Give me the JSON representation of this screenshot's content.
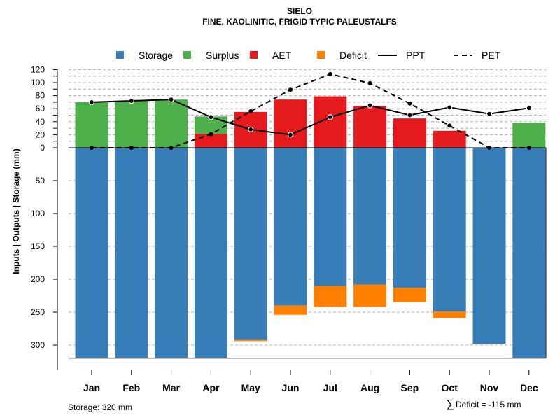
{
  "chart_data": {
    "type": "bar",
    "title": "SIELO",
    "subtitle": "FINE, KAOLINITIC, FRIGID TYPIC PALEUSTALFS",
    "ylabel": "Inputs | Outputs | Storage    (mm)",
    "categories": [
      "Jan",
      "Feb",
      "Mar",
      "Apr",
      "May",
      "Jun",
      "Jul",
      "Aug",
      "Sep",
      "Oct",
      "Nov",
      "Dec"
    ],
    "upper_ticks": [
      0,
      10,
      20,
      30,
      40,
      50,
      60,
      70,
      80,
      90,
      100,
      110,
      120
    ],
    "upper_tick_labels": [
      "0",
      "20",
      "40",
      "60",
      "80",
      "100",
      "120"
    ],
    "lower_ticks": [
      50,
      100,
      150,
      200,
      250,
      300
    ],
    "lower_tick_labels": [
      "50",
      "100",
      "150",
      "200",
      "250",
      "300"
    ],
    "legend": [
      {
        "name": "Storage",
        "kind": "box",
        "color": "#377eb8"
      },
      {
        "name": "Surplus",
        "kind": "box",
        "color": "#4daf4a"
      },
      {
        "name": "AET",
        "kind": "box",
        "color": "#e41a1c"
      },
      {
        "name": "Deficit",
        "kind": "box",
        "color": "#ff7f00"
      },
      {
        "name": "PPT",
        "kind": "solid-line",
        "color": "#000000"
      },
      {
        "name": "PET",
        "kind": "dashed-line",
        "color": "#000000"
      }
    ],
    "series": [
      {
        "name": "Surplus",
        "color": "#4daf4a",
        "values": [
          70,
          72,
          74,
          27,
          0,
          0,
          0,
          0,
          0,
          0,
          0,
          38
        ]
      },
      {
        "name": "AET",
        "color": "#e41a1c",
        "values": [
          0,
          0,
          0,
          21,
          55,
          74,
          79,
          64,
          45,
          26,
          0,
          0
        ]
      },
      {
        "name": "Storage",
        "color": "#377eb8",
        "values": [
          320,
          320,
          320,
          320,
          292,
          240,
          210,
          208,
          213,
          249,
          298,
          320
        ]
      },
      {
        "name": "Deficit",
        "color": "#ff7f00",
        "values": [
          0,
          0,
          0,
          0,
          2,
          14,
          32,
          34,
          22,
          10,
          0,
          0
        ]
      },
      {
        "name": "PPT",
        "color": "#000000",
        "values": [
          70,
          72,
          74,
          47,
          28,
          20,
          47,
          65,
          50,
          62,
          52,
          61
        ]
      },
      {
        "name": "PET",
        "color": "#000000",
        "values": [
          0,
          0,
          0,
          21,
          56,
          89,
          113,
          99,
          68,
          34,
          0,
          0
        ]
      }
    ],
    "ylim_upper": [
      0,
      120
    ],
    "ylim_lower": [
      0,
      320
    ],
    "grid": true,
    "legend_position": "top"
  },
  "footer": {
    "storage_text": "Storage: 320 mm",
    "deficit_symbol": "∑",
    "deficit_text": "Deficit = -115 mm"
  }
}
